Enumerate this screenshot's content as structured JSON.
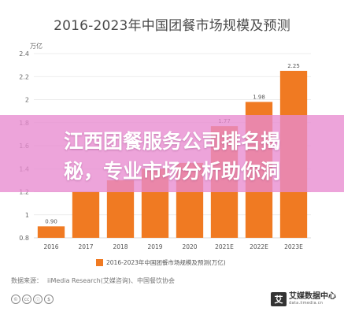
{
  "chart_data": {
    "type": "bar",
    "title": "2016-2023年中国团餐市场规模及预测",
    "ylabel": "万亿",
    "xlabel": "",
    "categories": [
      "2016",
      "2017",
      "2018",
      "2019",
      "2020",
      "2021E",
      "2022E",
      "2023E"
    ],
    "series": [
      {
        "name": "2016-2023年中国团餐市场规模及预测(万亿)",
        "values": [
          0.9,
          1.2,
          1.3,
          1.4,
          1.45,
          1.77,
          1.98,
          2.25
        ],
        "data_labels": [
          "0.90",
          "",
          "",
          "",
          "",
          "1.77",
          "1.98",
          "2.25"
        ]
      }
    ],
    "ylim": [
      0.8,
      2.4
    ],
    "yticks": [
      "0.8",
      "1",
      "1.2",
      "1.4",
      "1.6",
      "1.8",
      "2",
      "2.2",
      "2.4"
    ],
    "grid": true,
    "legend_position": "bottom",
    "bar_color": "#f07a22"
  },
  "source": {
    "label": "数据来源：",
    "text": "iiMedia Research(艾媒咨询)、中国餐饮协会"
  },
  "license_icons": [
    "©",
    "cc",
    "ⓘ",
    "$"
  ],
  "logo": {
    "mark": "艾",
    "cn": "艾媒数据中心",
    "en": "data.iimedia.cn"
  },
  "banner": {
    "line1": "江西团餐服务公司排名揭",
    "line2": "秘，专业市场分析助你洞",
    "color": "#e88ad0"
  }
}
